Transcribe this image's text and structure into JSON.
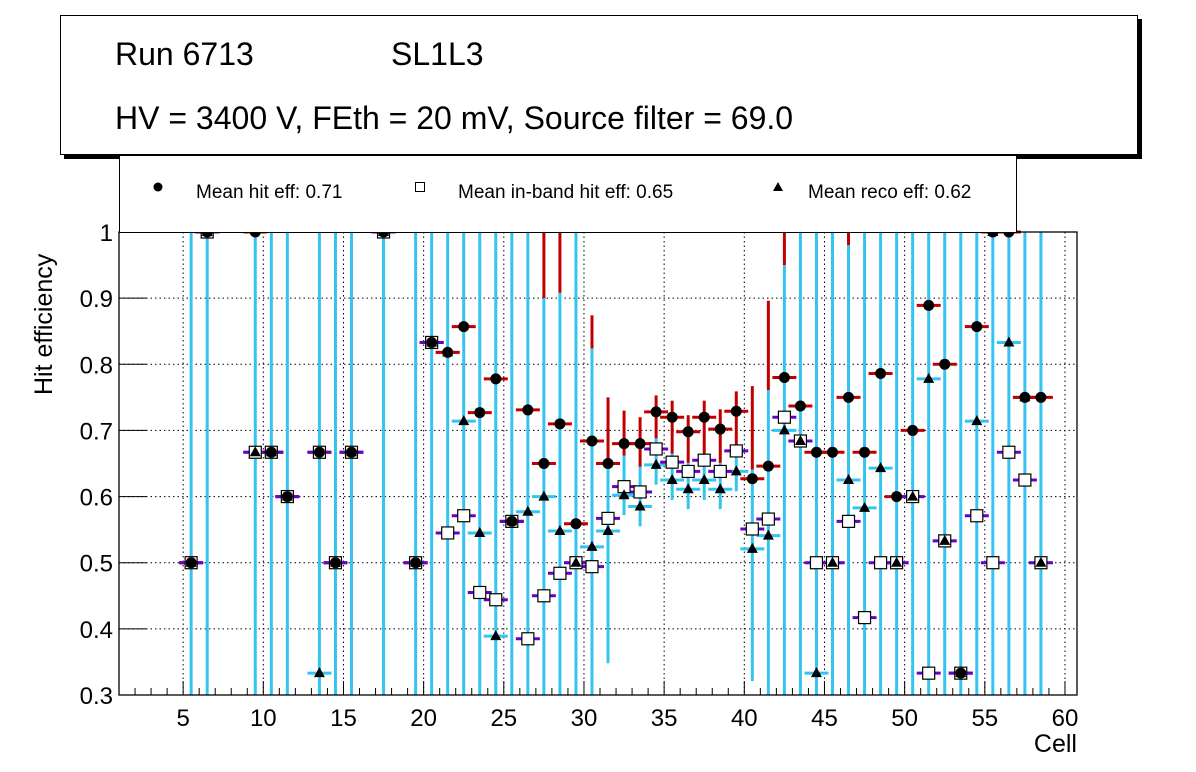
{
  "title": {
    "run": "Run 6713",
    "layer": "SL1L3",
    "conditions": "HV = 3400 V, FEth = 20 mV, Source filter = 69.0"
  },
  "legend": [
    {
      "marker": "filled-circle",
      "label": "Mean hit  eff: 0.71"
    },
    {
      "marker": "open-square",
      "label": "Mean in-band hit eff: 0.65"
    },
    {
      "marker": "filled-triangle",
      "label": "Mean reco eff: 0.62"
    }
  ],
  "colors": {
    "hit_error": "#c00000",
    "inband_error": "#6a00c8",
    "reco_error": "#35c4f0",
    "grid": "#000000"
  },
  "chart_data": {
    "type": "scatter",
    "title": "Run 6713 SL1L3 — HV = 3400 V, FEth = 20 mV, Source filter = 69.0",
    "xlabel": "Cell",
    "ylabel": "Hit efficiency",
    "xlim": [
      1,
      60.75
    ],
    "ylim": [
      0.3,
      1.0
    ],
    "xticks": [
      5,
      10,
      15,
      20,
      25,
      30,
      35,
      40,
      45,
      50,
      55,
      60
    ],
    "yticks": [
      "0.3",
      "0.4",
      "0.5",
      "0.6",
      "0.7",
      "0.8",
      "0.9",
      "1"
    ],
    "grid": true,
    "legend_position": "top",
    "series": [
      {
        "name": "Mean hit eff",
        "marker": "filled-circle",
        "x": [
          5.5,
          6.5,
          9.5,
          10.5,
          11.5,
          13.5,
          14.5,
          15.5,
          17.5,
          19.5,
          20.5,
          21.5,
          22.5,
          23.5,
          24.5,
          25.5,
          26.5,
          27.5,
          28.5,
          29.5,
          30.5,
          31.5,
          32.5,
          33.5,
          34.5,
          35.5,
          36.5,
          37.5,
          38.5,
          39.5,
          40.5,
          41.5,
          42.5,
          43.5,
          44.5,
          45.5,
          46.5,
          47.5,
          48.5,
          49.5,
          50.5,
          51.5,
          52.5,
          53.5,
          54.5,
          55.5,
          56.5,
          57.5,
          58.5
        ],
        "values": [
          0.5,
          1.0,
          1.0,
          0.667,
          0.6,
          0.667,
          0.5,
          0.667,
          1.0,
          0.5,
          0.833,
          0.818,
          0.857,
          0.727,
          0.778,
          0.5625,
          0.731,
          0.65,
          0.71,
          0.559,
          0.684,
          0.65,
          0.68,
          0.68,
          0.728,
          0.72,
          0.698,
          0.72,
          0.702,
          0.729,
          0.627,
          0.646,
          0.78,
          0.737,
          0.667,
          0.667,
          0.75,
          0.667,
          0.786,
          0.6,
          0.7,
          0.889,
          0.8,
          0.333,
          0.857,
          1.0,
          1.0,
          0.75,
          0.75
        ],
        "err_hi": [
          0.5,
          0.0,
          0.0,
          0.333,
          0.4,
          0.333,
          0.5,
          0.333,
          0.0,
          0.5,
          0.167,
          0.182,
          0.143,
          0.273,
          0.222,
          0.4375,
          0.269,
          0.35,
          0.29,
          0.441,
          0.19,
          0.1,
          0.05,
          0.04,
          0.025,
          0.025,
          0.025,
          0.025,
          0.03,
          0.03,
          0.14,
          0.25,
          0.22,
          0.263,
          0.333,
          0.333,
          0.25,
          0.333,
          0.214,
          0.4,
          0.3,
          0.111,
          0.2,
          0.667,
          0.143,
          0.0,
          0.0,
          0.25,
          0.25
        ],
        "err_lo": [
          0.5,
          0.7,
          0.7,
          0.367,
          0.3,
          0.367,
          0.2,
          0.367,
          0.7,
          0.2,
          0.533,
          0.518,
          0.557,
          0.427,
          0.478,
          0.2625,
          0.431,
          0.35,
          0.41,
          0.259,
          0.384,
          0.35,
          0.38,
          0.38,
          0.428,
          0.42,
          0.398,
          0.42,
          0.402,
          0.429,
          0.327,
          0.346,
          0.48,
          0.437,
          0.367,
          0.367,
          0.45,
          0.367,
          0.486,
          0.3,
          0.4,
          0.589,
          0.5,
          0.033,
          0.557,
          0.7,
          0.7,
          0.45,
          0.45
        ]
      },
      {
        "name": "Mean in-band hit eff",
        "marker": "open-square",
        "x": [
          5.5,
          6.5,
          9.5,
          10.5,
          11.5,
          13.5,
          14.5,
          15.5,
          17.5,
          19.5,
          20.5,
          21.5,
          22.5,
          23.5,
          24.5,
          25.5,
          26.5,
          27.5,
          28.5,
          29.5,
          30.5,
          31.5,
          32.5,
          33.5,
          34.5,
          35.5,
          36.5,
          37.5,
          38.5,
          39.5,
          40.5,
          41.5,
          42.5,
          43.5,
          44.5,
          45.5,
          46.5,
          47.5,
          48.5,
          49.5,
          50.5,
          51.5,
          52.5,
          53.5,
          54.5,
          55.5,
          56.5,
          57.5,
          58.5
        ],
        "values": [
          0.5,
          1.0,
          0.667,
          0.667,
          0.6,
          0.667,
          0.5,
          0.667,
          1.0,
          0.5,
          0.833,
          0.545,
          0.571,
          0.455,
          0.444,
          0.5625,
          0.385,
          0.45,
          0.484,
          0.5,
          0.494,
          0.567,
          0.615,
          0.607,
          0.672,
          0.652,
          0.638,
          0.655,
          0.638,
          0.669,
          0.551,
          0.566,
          0.72,
          0.684,
          0.5,
          0.5,
          0.5625,
          0.417,
          0.5,
          0.5,
          0.6,
          0.333,
          0.533,
          0.333,
          0.571,
          0.5,
          0.667,
          0.625,
          0.5
        ]
      },
      {
        "name": "Mean reco eff",
        "marker": "filled-triangle",
        "x": [
          5.5,
          6.5,
          9.5,
          10.5,
          11.5,
          13.5,
          14.5,
          15.5,
          17.5,
          19.5,
          20.5,
          21.5,
          22.5,
          23.5,
          24.5,
          25.5,
          26.5,
          27.5,
          28.5,
          29.5,
          30.5,
          31.5,
          32.5,
          33.5,
          34.5,
          35.5,
          36.5,
          37.5,
          38.5,
          39.5,
          40.5,
          41.5,
          42.5,
          43.5,
          44.5,
          45.5,
          46.5,
          47.5,
          48.5,
          49.5,
          50.5,
          51.5,
          52.5,
          53.5,
          54.5,
          55.5,
          56.5,
          57.5,
          58.5
        ],
        "values": [
          0.5,
          1.0,
          0.667,
          0.667,
          0.6,
          0.333,
          0.5,
          0.667,
          1.0,
          0.5,
          0.833,
          0.818,
          0.714,
          0.545,
          0.389,
          0.5625,
          0.577,
          0.6,
          0.548,
          0.5,
          0.524,
          0.548,
          0.602,
          0.585,
          0.648,
          0.625,
          0.611,
          0.625,
          0.611,
          0.638,
          0.521,
          0.541,
          0.7,
          0.684,
          0.333,
          0.5,
          0.625,
          0.583,
          0.643,
          0.5,
          0.6,
          0.778,
          0.533,
          0.333,
          0.714,
          1.0,
          0.833,
          0.75,
          0.5
        ],
        "err_hi": [
          0.5,
          0.0,
          0.333,
          0.333,
          0.4,
          0.667,
          0.5,
          0.333,
          0.0,
          0.5,
          0.167,
          0.182,
          0.286,
          0.455,
          0.611,
          0.4375,
          0.423,
          0.3,
          0.36,
          0.5,
          0.3,
          0.1,
          0.06,
          0.06,
          0.04,
          0.04,
          0.04,
          0.04,
          0.04,
          0.04,
          0.12,
          0.22,
          0.25,
          0.316,
          0.667,
          0.5,
          0.355,
          0.417,
          0.357,
          0.5,
          0.4,
          0.222,
          0.467,
          0.667,
          0.286,
          0.0,
          0.167,
          0.25,
          0.5
        ],
        "err_lo": [
          0.5,
          0.7,
          0.367,
          0.367,
          0.3,
          0.033,
          0.2,
          0.367,
          0.7,
          0.2,
          0.533,
          0.518,
          0.414,
          0.245,
          0.089,
          0.2625,
          0.277,
          0.3,
          0.248,
          0.2,
          0.224,
          0.2,
          0.03,
          0.03,
          0.03,
          0.03,
          0.03,
          0.03,
          0.03,
          0.03,
          0.2,
          0.25,
          0.4,
          0.384,
          0.033,
          0.2,
          0.325,
          0.283,
          0.343,
          0.2,
          0.3,
          0.478,
          0.233,
          0.033,
          0.414,
          0.7,
          0.533,
          0.45,
          0.2
        ]
      }
    ]
  }
}
